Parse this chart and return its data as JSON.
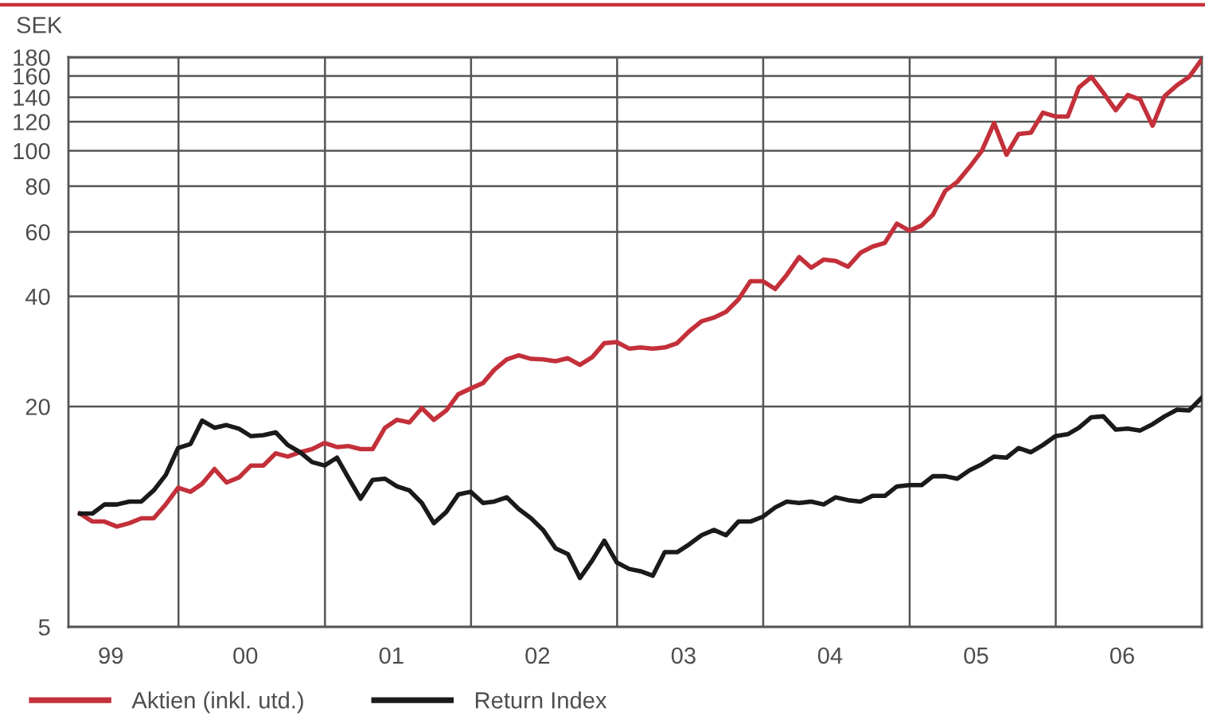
{
  "chart_data": {
    "type": "line",
    "ylabel": "SEK",
    "x": [
      "1999-04-30",
      "1999-05-31",
      "1999-06-30",
      "1999-07-31",
      "1999-08-31",
      "1999-09-30",
      "1999-10-31",
      "1999-11-30",
      "1999-12-31",
      "2000-01-31",
      "2000-02-29",
      "2000-03-31",
      "2000-04-30",
      "2000-05-31",
      "2000-06-30",
      "2000-07-31",
      "2000-08-31",
      "2000-09-30",
      "2000-10-31",
      "2000-11-30",
      "2000-12-31",
      "2001-01-31",
      "2001-02-28",
      "2001-03-31",
      "2001-04-30",
      "2001-05-31",
      "2001-06-30",
      "2001-07-31",
      "2001-08-31",
      "2001-09-30",
      "2001-10-31",
      "2001-11-30",
      "2001-12-31",
      "2002-01-31",
      "2002-02-28",
      "2002-03-31",
      "2002-04-30",
      "2002-05-31",
      "2002-06-30",
      "2002-07-31",
      "2002-08-31",
      "2002-09-30",
      "2002-10-31",
      "2002-11-30",
      "2002-12-31",
      "2003-01-31",
      "2003-02-28",
      "2003-03-31",
      "2003-04-30",
      "2003-05-31",
      "2003-06-30",
      "2003-07-31",
      "2003-08-31",
      "2003-09-30",
      "2003-10-31",
      "2003-11-30",
      "2003-12-31",
      "2004-01-31",
      "2004-02-29",
      "2004-03-31",
      "2004-04-30",
      "2004-05-31",
      "2004-06-30",
      "2004-07-31",
      "2004-08-31",
      "2004-09-30",
      "2004-10-31",
      "2004-11-30",
      "2004-12-31",
      "2005-01-31",
      "2005-02-28",
      "2005-03-31",
      "2005-04-30",
      "2005-05-31",
      "2005-06-30",
      "2005-07-31",
      "2005-08-31",
      "2005-09-30",
      "2005-10-31",
      "2005-11-30",
      "2005-12-31",
      "2006-01-31",
      "2006-02-28",
      "2006-03-31",
      "2006-04-30",
      "2006-05-31",
      "2006-06-30",
      "2006-07-31",
      "2006-08-31",
      "2006-09-30",
      "2006-10-31",
      "2006-11-30",
      "2006-12-31"
    ],
    "series": [
      {
        "name": "Aktien (inkl. utd.)",
        "color": "#c3303a",
        "values": [
          10.2,
          9.7,
          9.7,
          9.4,
          9.6,
          9.9,
          9.9,
          10.8,
          12.0,
          11.7,
          12.3,
          13.5,
          12.4,
          12.8,
          13.8,
          13.8,
          14.9,
          14.6,
          15.0,
          15.3,
          15.9,
          15.5,
          15.6,
          15.3,
          15.3,
          17.5,
          18.4,
          18.1,
          19.8,
          18.4,
          19.5,
          21.6,
          22.4,
          23.2,
          25.2,
          26.9,
          27.6,
          27.0,
          26.9,
          26.6,
          27.1,
          26.0,
          27.3,
          29.8,
          30.0,
          28.8,
          29.0,
          28.8,
          29.0,
          29.8,
          32.1,
          34.2,
          35.0,
          36.3,
          39.2,
          44.0,
          44.0,
          41.9,
          45.8,
          51.2,
          47.9,
          50.4,
          50.0,
          48.2,
          52.6,
          54.7,
          56.0,
          63.2,
          60.5,
          62.5,
          66.8,
          77.7,
          82.2,
          90.3,
          99.8,
          119,
          97.5,
          111,
          112,
          127,
          124,
          124,
          149,
          159,
          144,
          129,
          142,
          138,
          117,
          141,
          151,
          159,
          177
        ]
      },
      {
        "name": "Return Index",
        "color": "#1a1a1a",
        "values": [
          10.2,
          10.2,
          10.8,
          10.8,
          11.0,
          11.0,
          11.8,
          13.0,
          15.4,
          15.8,
          18.3,
          17.5,
          17.8,
          17.4,
          16.6,
          16.7,
          17.0,
          15.7,
          15.0,
          14.1,
          13.8,
          14.5,
          12.8,
          11.2,
          12.6,
          12.7,
          12.1,
          11.8,
          10.9,
          9.6,
          10.3,
          11.5,
          11.7,
          10.9,
          11.0,
          11.3,
          10.5,
          9.9,
          9.2,
          8.2,
          7.9,
          6.8,
          7.6,
          8.6,
          7.5,
          7.2,
          7.1,
          6.9,
          8.0,
          8.0,
          8.4,
          8.9,
          9.2,
          8.9,
          9.7,
          9.7,
          10.0,
          10.6,
          11.0,
          10.9,
          11.0,
          10.8,
          11.3,
          11.1,
          11.0,
          11.4,
          11.4,
          12.1,
          12.2,
          12.2,
          12.9,
          12.9,
          12.7,
          13.4,
          13.9,
          14.6,
          14.5,
          15.4,
          15.0,
          15.7,
          16.6,
          16.8,
          17.5,
          18.7,
          18.8,
          17.3,
          17.4,
          17.2,
          17.9,
          18.8,
          19.6,
          19.5,
          21.1
        ]
      }
    ],
    "log": "y",
    "ylim": [
      5,
      180
    ],
    "yticks": [
      5,
      20,
      40,
      60,
      80,
      100,
      120,
      140,
      160,
      180
    ],
    "xlim": [
      "1999-04-01",
      "2007-01-01"
    ],
    "xticks": [
      {
        "value": "1999-07-16",
        "label": "99"
      },
      {
        "value": "2000-01-01",
        "label": null
      },
      {
        "value": "2000-06-16",
        "label": "00"
      },
      {
        "value": "2001-01-01",
        "label": null
      },
      {
        "value": "2001-06-16",
        "label": "01"
      },
      {
        "value": "2002-01-01",
        "label": null
      },
      {
        "value": "2002-06-16",
        "label": "02"
      },
      {
        "value": "2003-01-01",
        "label": null
      },
      {
        "value": "2003-06-16",
        "label": "03"
      },
      {
        "value": "2004-01-01",
        "label": null
      },
      {
        "value": "2004-06-16",
        "label": "04"
      },
      {
        "value": "2005-01-01",
        "label": null
      },
      {
        "value": "2005-06-16",
        "label": "05"
      },
      {
        "value": "2006-01-01",
        "label": null
      },
      {
        "value": "2006-06-16",
        "label": "06"
      }
    ],
    "grid": true,
    "legend": "bottom",
    "marker": "none",
    "line_style": "solid"
  }
}
